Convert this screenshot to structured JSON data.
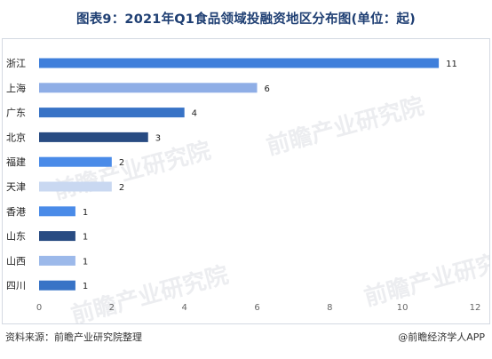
{
  "title": "图表9：2021年Q1食品领域投融资地区分布图(单位：起)",
  "footer": {
    "source": "资料来源：前瞻产业研究院整理",
    "brand": "@前瞻经济学人APP"
  },
  "watermark": "前瞻产业研究院",
  "chart_data": {
    "type": "bar",
    "orientation": "horizontal",
    "title": "图表9：2021年Q1食品领域投融资地区分布图(单位：起)",
    "categories": [
      "浙江",
      "上海",
      "广东",
      "北京",
      "福建",
      "天津",
      "香港",
      "山东",
      "山西",
      "四川"
    ],
    "values": [
      11,
      6,
      4,
      3,
      2,
      2,
      1,
      1,
      1,
      1
    ],
    "colors": [
      "#3f7fdb",
      "#8faee6",
      "#3873c6",
      "#284b82",
      "#4a8be8",
      "#c9d8f1",
      "#4a8be8",
      "#284b82",
      "#9cb9ea",
      "#3873c6"
    ],
    "xlim": [
      0,
      12
    ],
    "xticks": [
      0,
      2,
      4,
      6,
      8,
      10,
      12
    ],
    "xlabel": "",
    "ylabel": "",
    "grid": false,
    "legend": "none"
  }
}
